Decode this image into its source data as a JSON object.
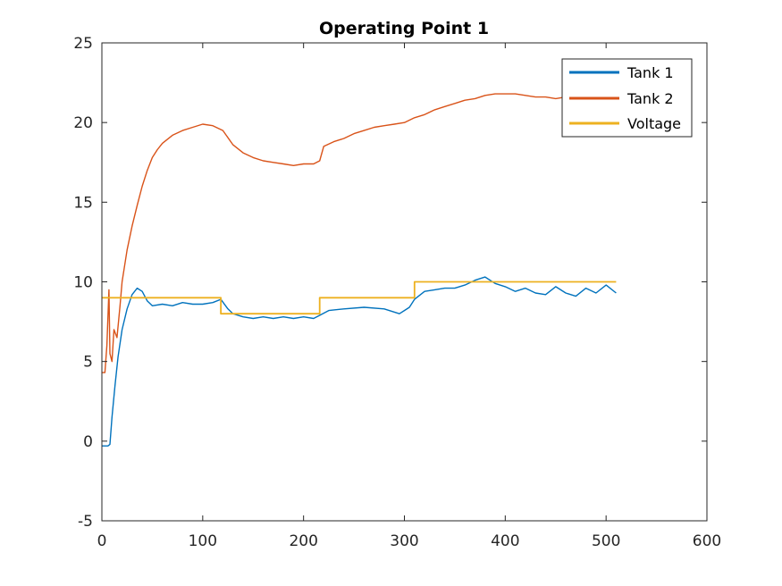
{
  "chart_data": {
    "type": "line",
    "title": "Operating Point 1",
    "xlabel": "",
    "ylabel": "",
    "xlim": [
      0,
      600
    ],
    "ylim": [
      -5,
      25
    ],
    "xticks": [
      0,
      100,
      200,
      300,
      400,
      500,
      600
    ],
    "yticks": [
      -5,
      0,
      5,
      10,
      15,
      20,
      25
    ],
    "grid": false,
    "legend_position": "top-right",
    "series": [
      {
        "name": "Tank 1",
        "color": "#0072BD",
        "x": [
          0,
          6,
          8,
          10,
          13,
          16,
          20,
          25,
          30,
          35,
          40,
          45,
          50,
          60,
          70,
          80,
          90,
          100,
          110,
          118,
          125,
          130,
          140,
          150,
          160,
          170,
          180,
          190,
          200,
          210,
          216,
          225,
          240,
          260,
          280,
          295,
          300,
          305,
          310,
          320,
          330,
          340,
          350,
          360,
          370,
          380,
          390,
          400,
          410,
          420,
          430,
          440,
          450,
          460,
          470,
          480,
          490,
          500,
          510
        ],
        "y": [
          -0.3,
          -0.3,
          -0.2,
          1.5,
          3.5,
          5.3,
          7.0,
          8.3,
          9.2,
          9.6,
          9.4,
          8.8,
          8.5,
          8.6,
          8.5,
          8.7,
          8.6,
          8.6,
          8.7,
          8.9,
          8.3,
          8.0,
          7.8,
          7.7,
          7.8,
          7.7,
          7.8,
          7.7,
          7.8,
          7.7,
          7.9,
          8.2,
          8.3,
          8.4,
          8.3,
          8.0,
          8.2,
          8.4,
          8.9,
          9.4,
          9.5,
          9.6,
          9.6,
          9.8,
          10.1,
          10.3,
          9.9,
          9.7,
          9.4,
          9.6,
          9.3,
          9.2,
          9.7,
          9.3,
          9.1,
          9.6,
          9.3,
          9.8,
          9.3
        ]
      },
      {
        "name": "Tank 2",
        "color": "#D95319",
        "x": [
          0,
          3,
          5,
          7,
          8,
          10,
          12,
          15,
          18,
          20,
          25,
          30,
          35,
          40,
          45,
          50,
          55,
          60,
          70,
          80,
          90,
          100,
          110,
          120,
          130,
          140,
          150,
          160,
          170,
          180,
          190,
          200,
          210,
          216,
          220,
          230,
          240,
          250,
          260,
          270,
          280,
          290,
          300,
          310,
          320,
          330,
          340,
          350,
          360,
          370,
          380,
          390,
          400,
          410,
          420,
          430,
          440,
          450,
          460
        ],
        "y": [
          4.3,
          4.3,
          6.0,
          9.5,
          5.5,
          5.0,
          7.0,
          6.5,
          8.5,
          10.0,
          12.0,
          13.5,
          14.8,
          16.0,
          17.0,
          17.8,
          18.3,
          18.7,
          19.2,
          19.5,
          19.7,
          19.9,
          19.8,
          19.5,
          18.6,
          18.1,
          17.8,
          17.6,
          17.5,
          17.4,
          17.3,
          17.4,
          17.4,
          17.6,
          18.5,
          18.8,
          19.0,
          19.3,
          19.5,
          19.7,
          19.8,
          19.9,
          20.0,
          20.3,
          20.5,
          20.8,
          21.0,
          21.2,
          21.4,
          21.5,
          21.7,
          21.8,
          21.8,
          21.8,
          21.7,
          21.6,
          21.6,
          21.5,
          21.6
        ]
      },
      {
        "name": "Voltage",
        "color": "#EDB120",
        "x": [
          0,
          118,
          118,
          216,
          216,
          310,
          310,
          510
        ],
        "y": [
          9,
          9,
          8,
          8,
          9,
          9,
          10,
          10
        ]
      }
    ]
  }
}
